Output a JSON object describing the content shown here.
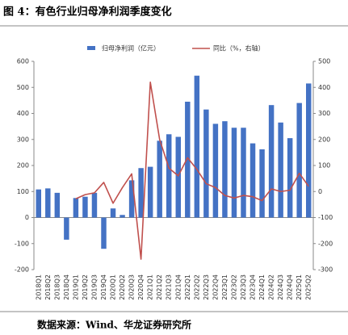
{
  "title": "图 4：有色行业归母净利润季度变化",
  "source": "数据来源：Wind、华龙证券研究所",
  "chart_data": {
    "type": "bar-line",
    "categories": [
      "2018Q1",
      "2018Q2",
      "2018Q3",
      "2018Q4",
      "2019Q1",
      "2019Q2",
      "2019Q3",
      "2019Q4",
      "2020Q1",
      "2020Q2",
      "2020Q3",
      "2020Q4",
      "2021Q1",
      "2021Q2",
      "2021Q3",
      "2021Q4",
      "2022Q1",
      "2022Q2",
      "2022Q3",
      "2022Q4",
      "2023Q1",
      "2023Q2",
      "2023Q3",
      "2023Q4",
      "2024Q1",
      "2024Q2",
      "2024Q3",
      "2024Q4",
      "2025Q1",
      "2025Q2"
    ],
    "series": [
      {
        "name": "归母净利润（亿元）",
        "type": "bar",
        "color": "#4472c4",
        "values": [
          108,
          112,
          95,
          -85,
          75,
          80,
          95,
          -120,
          35,
          10,
          143,
          190,
          195,
          295,
          320,
          310,
          445,
          545,
          415,
          360,
          370,
          345,
          345,
          285,
          262,
          432,
          365,
          305,
          440,
          515
        ]
      },
      {
        "name": "同比（%，右轴）",
        "type": "line",
        "axis": "y2",
        "color": "#c0504d",
        "values": [
          null,
          null,
          null,
          null,
          -28,
          -12,
          -5,
          35,
          -45,
          15,
          68,
          -260,
          420,
          200,
          90,
          60,
          130,
          85,
          30,
          15,
          -15,
          -25,
          -15,
          -20,
          -35,
          10,
          0,
          5,
          70,
          20
        ]
      }
    ],
    "ylim": [
      -200,
      600
    ],
    "yticks": [
      -200,
      -100,
      0,
      100,
      200,
      300,
      400,
      500,
      600
    ],
    "y2lim": [
      -300,
      500
    ],
    "y2ticks": [
      -300,
      -200,
      -100,
      0,
      100,
      200,
      300,
      400,
      500
    ]
  }
}
